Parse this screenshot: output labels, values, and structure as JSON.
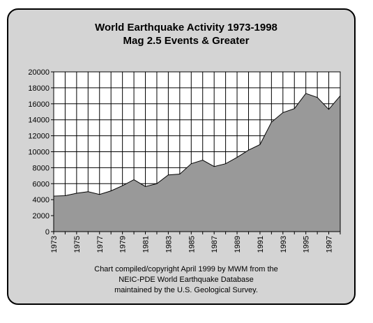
{
  "chart_data": {
    "type": "area",
    "title": "World Earthquake Activity 1973-1998",
    "subtitle": "Mag 2.5 Events & Greater",
    "xlabel": "",
    "ylabel": "",
    "x": [
      1973,
      1974,
      1975,
      1976,
      1977,
      1978,
      1979,
      1980,
      1981,
      1982,
      1983,
      1984,
      1985,
      1986,
      1987,
      1988,
      1989,
      1990,
      1991,
      1992,
      1993,
      1994,
      1995,
      1996,
      1997,
      1998
    ],
    "values": [
      4450,
      4500,
      4800,
      5000,
      4650,
      5100,
      5750,
      6500,
      5650,
      6000,
      7100,
      7200,
      8500,
      8950,
      8150,
      8500,
      9300,
      10200,
      10900,
      13700,
      14900,
      15400,
      17300,
      16800,
      15300,
      17000
    ],
    "xlim": [
      1973,
      1998
    ],
    "ylim": [
      0,
      20000
    ],
    "x_ticks": [
      "1973",
      "1975",
      "1977",
      "1979",
      "1981",
      "1983",
      "1985",
      "1987",
      "1989",
      "1991",
      "1993",
      "1995",
      "1997"
    ],
    "y_ticks": [
      "0",
      "2000",
      "4000",
      "6000",
      "8000",
      "10000",
      "12000",
      "14000",
      "16000",
      "18000",
      "20000"
    ],
    "grid": true,
    "legend": "none",
    "fill_color": "#999999",
    "background_color": "#d4d4d4",
    "plot_background_color": "#ffffff"
  },
  "caption": {
    "line1": "Chart compiled/copyright April 1999 by MWM from the",
    "line2": "NEIC-PDE World Earthquake Database",
    "line3": "maintained by the U.S. Geological Survey."
  }
}
